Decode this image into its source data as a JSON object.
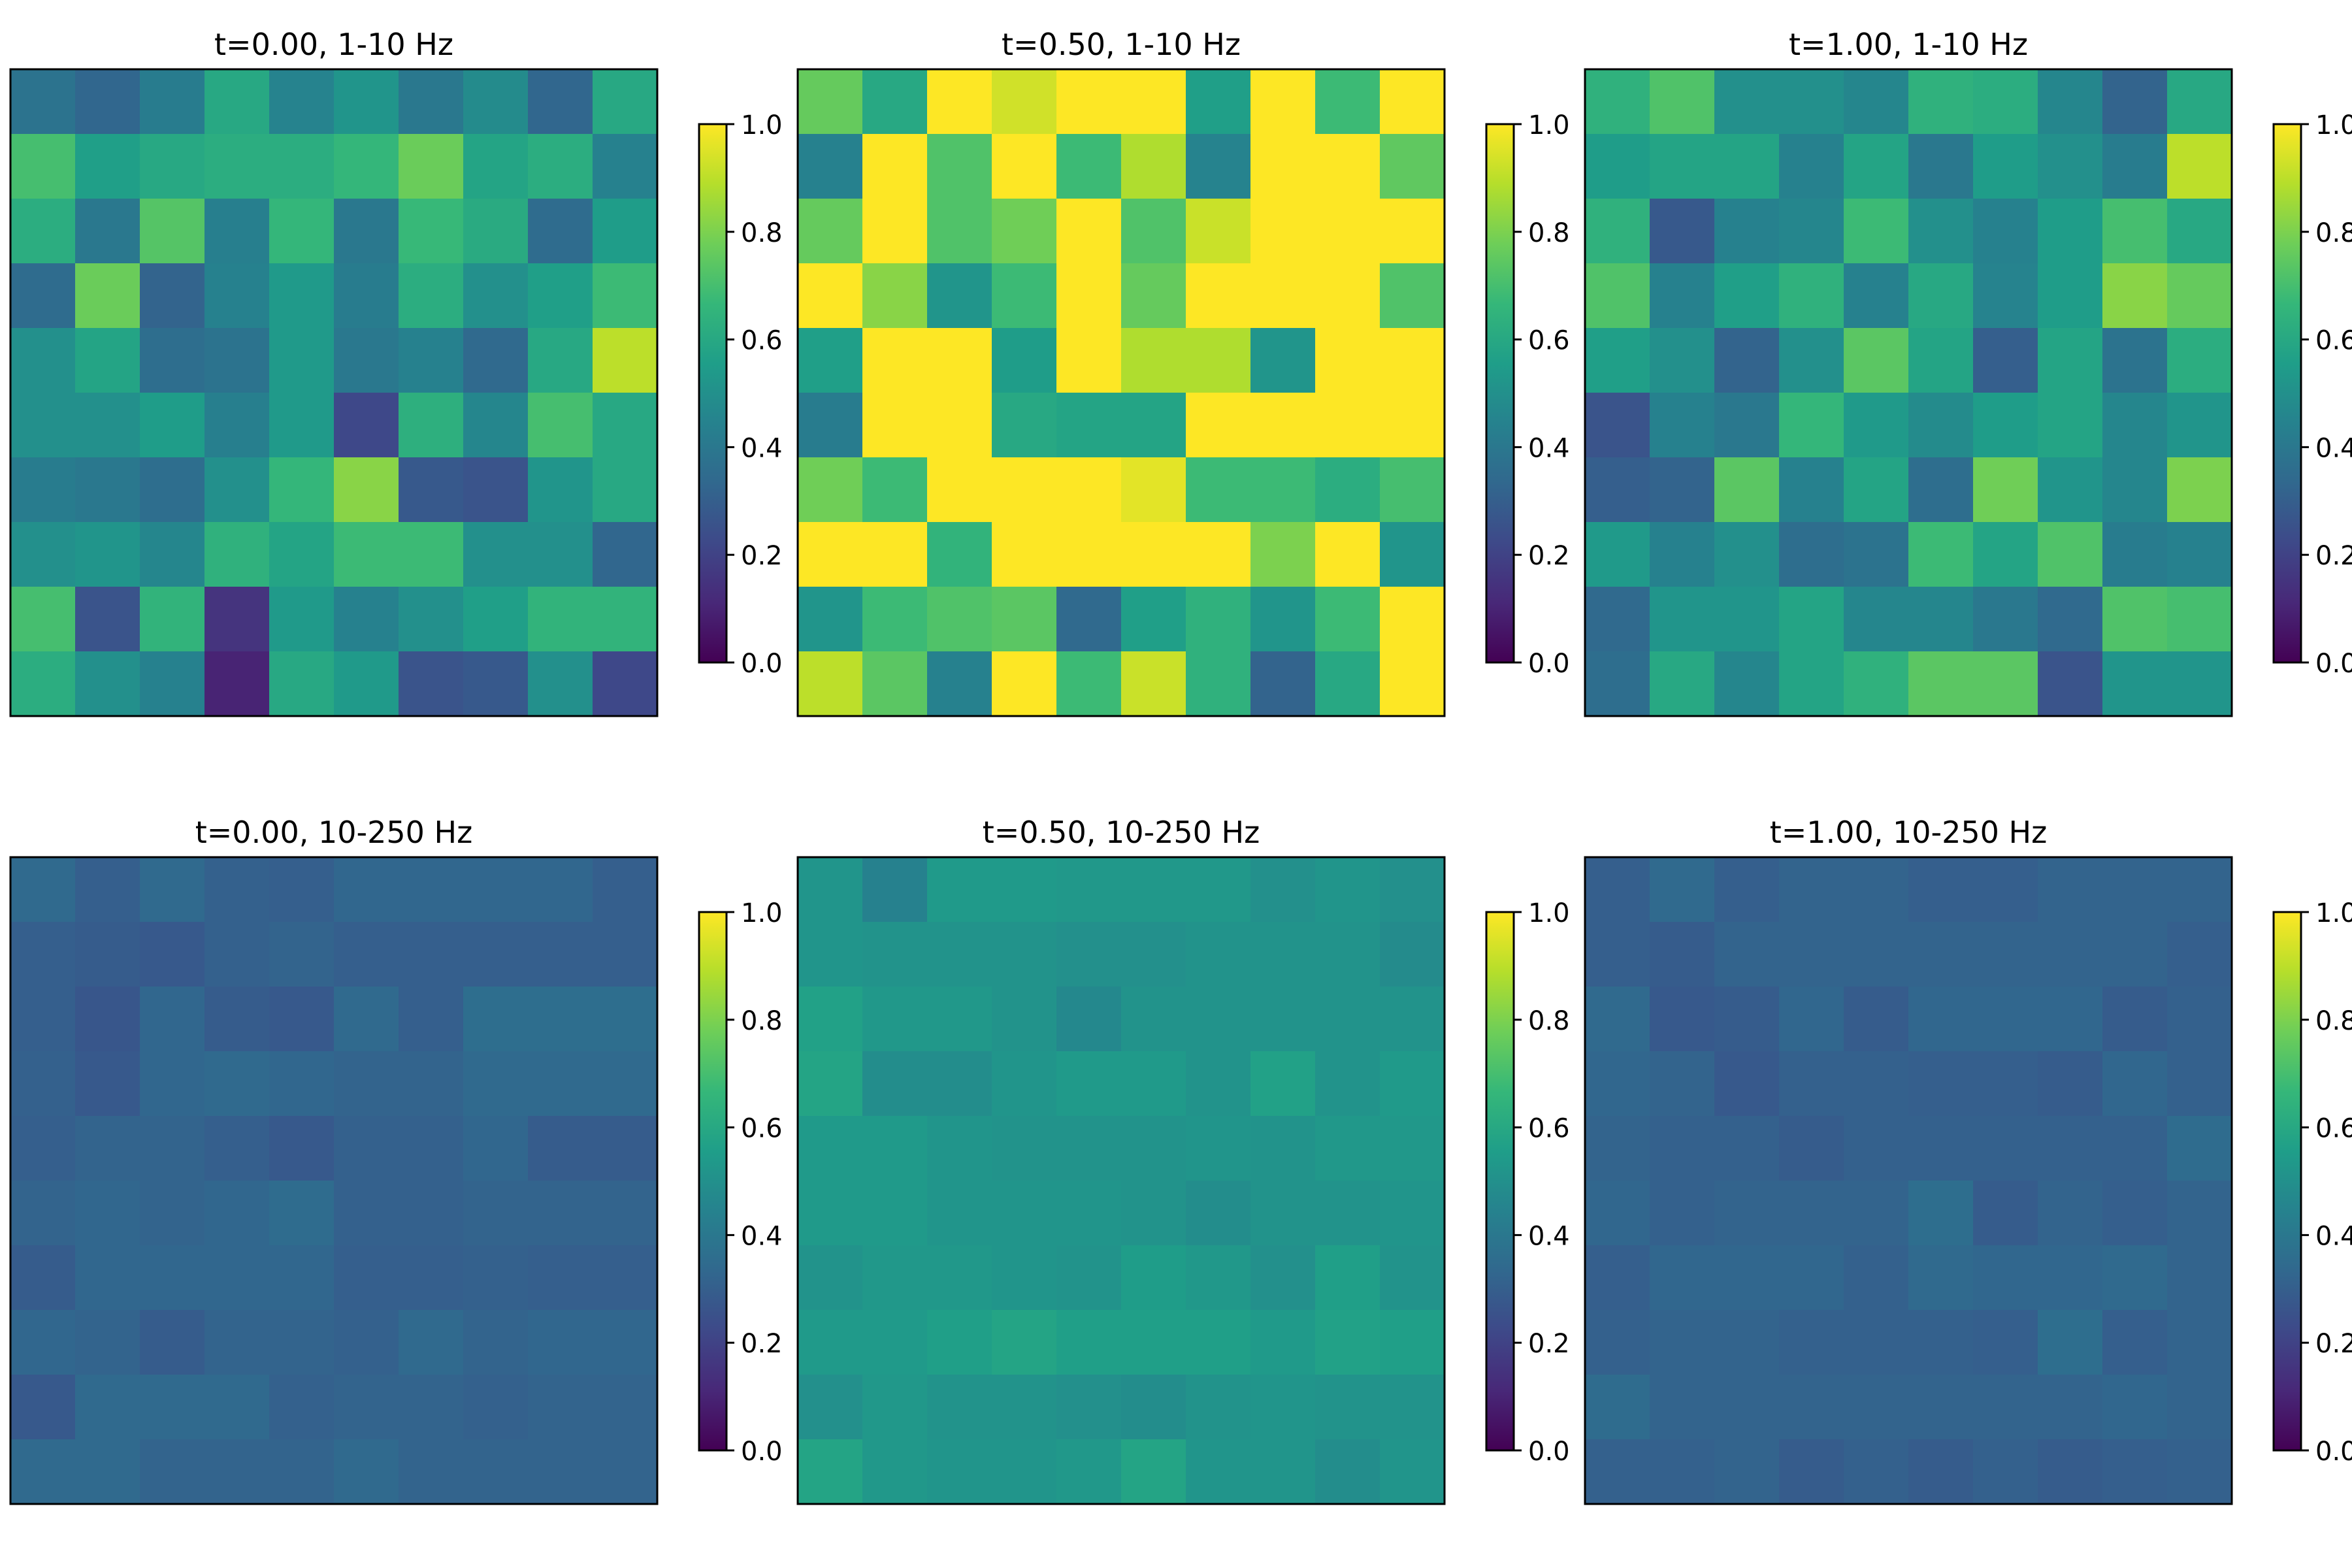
{
  "figure": {
    "colormap": "viridis",
    "colormap_stops": [
      "#440154",
      "#482878",
      "#3e4989",
      "#31688e",
      "#26828e",
      "#1f9e89",
      "#35b779",
      "#6ece58",
      "#b5de2b",
      "#fde725"
    ]
  },
  "chart_data": [
    {
      "type": "heatmap",
      "title": "t=0.00, 1-10 Hz",
      "clim": [
        0,
        1
      ],
      "colorbar_ticks": [
        "0.0",
        "0.2",
        "0.4",
        "0.6",
        "0.8",
        "1.0"
      ],
      "values": [
        [
          0.38,
          0.33,
          0.42,
          0.6,
          0.45,
          0.52,
          0.4,
          0.48,
          0.33,
          0.6
        ],
        [
          0.7,
          0.56,
          0.6,
          0.62,
          0.62,
          0.66,
          0.77,
          0.58,
          0.62,
          0.44
        ],
        [
          0.62,
          0.4,
          0.73,
          0.43,
          0.66,
          0.4,
          0.67,
          0.61,
          0.35,
          0.55
        ],
        [
          0.35,
          0.77,
          0.32,
          0.44,
          0.54,
          0.42,
          0.62,
          0.5,
          0.56,
          0.68
        ],
        [
          0.5,
          0.58,
          0.36,
          0.38,
          0.54,
          0.4,
          0.44,
          0.34,
          0.6,
          0.9
        ],
        [
          0.5,
          0.5,
          0.55,
          0.43,
          0.54,
          0.22,
          0.63,
          0.46,
          0.7,
          0.6
        ],
        [
          0.42,
          0.4,
          0.36,
          0.5,
          0.66,
          0.82,
          0.28,
          0.26,
          0.52,
          0.6
        ],
        [
          0.5,
          0.52,
          0.46,
          0.64,
          0.58,
          0.68,
          0.68,
          0.5,
          0.5,
          0.33
        ],
        [
          0.7,
          0.26,
          0.65,
          0.15,
          0.54,
          0.44,
          0.5,
          0.56,
          0.65,
          0.65
        ],
        [
          0.62,
          0.5,
          0.44,
          0.1,
          0.6,
          0.54,
          0.26,
          0.28,
          0.5,
          0.22
        ]
      ]
    },
    {
      "type": "heatmap",
      "title": "t=0.50, 1-10 Hz",
      "clim": [
        0,
        1
      ],
      "colorbar_ticks": [
        "0.0",
        "0.2",
        "0.4",
        "0.6",
        "0.8",
        "1.0"
      ],
      "values": [
        [
          0.76,
          0.6,
          1.0,
          0.93,
          1.0,
          1.0,
          0.56,
          1.0,
          0.68,
          1.0
        ],
        [
          0.44,
          1.0,
          0.72,
          1.0,
          0.68,
          0.88,
          0.45,
          1.0,
          1.0,
          0.75
        ],
        [
          0.76,
          1.0,
          0.72,
          0.78,
          1.0,
          0.72,
          0.92,
          1.0,
          1.0,
          1.0
        ],
        [
          1.0,
          0.82,
          0.52,
          0.68,
          1.0,
          0.76,
          1.0,
          1.0,
          1.0,
          0.72
        ],
        [
          0.56,
          1.0,
          1.0,
          0.55,
          1.0,
          0.88,
          0.88,
          0.52,
          1.0,
          1.0
        ],
        [
          0.42,
          1.0,
          1.0,
          0.6,
          0.58,
          0.58,
          1.0,
          1.0,
          1.0,
          1.0
        ],
        [
          0.78,
          0.68,
          1.0,
          1.0,
          1.0,
          0.96,
          0.68,
          0.68,
          0.62,
          0.7
        ],
        [
          1.0,
          1.0,
          0.65,
          1.0,
          1.0,
          1.0,
          1.0,
          0.8,
          1.0,
          0.52
        ],
        [
          0.52,
          0.68,
          0.72,
          0.74,
          0.34,
          0.56,
          0.64,
          0.52,
          0.68,
          1.0
        ],
        [
          0.9,
          0.74,
          0.44,
          1.0,
          0.68,
          0.92,
          0.64,
          0.32,
          0.6,
          1.0
        ]
      ]
    },
    {
      "type": "heatmap",
      "title": "t=1.00, 1-10 Hz",
      "clim": [
        0,
        1
      ],
      "colorbar_ticks": [
        "0.0",
        "0.2",
        "0.4",
        "0.6",
        "0.8",
        "1.0"
      ],
      "values": [
        [
          0.64,
          0.72,
          0.5,
          0.5,
          0.46,
          0.64,
          0.62,
          0.46,
          0.32,
          0.6
        ],
        [
          0.55,
          0.58,
          0.58,
          0.44,
          0.58,
          0.4,
          0.55,
          0.5,
          0.42,
          0.9
        ],
        [
          0.64,
          0.28,
          0.44,
          0.46,
          0.68,
          0.5,
          0.44,
          0.55,
          0.7,
          0.6
        ],
        [
          0.72,
          0.44,
          0.56,
          0.64,
          0.44,
          0.6,
          0.45,
          0.55,
          0.82,
          0.76
        ],
        [
          0.56,
          0.5,
          0.32,
          0.5,
          0.74,
          0.58,
          0.3,
          0.58,
          0.38,
          0.62
        ],
        [
          0.26,
          0.44,
          0.4,
          0.66,
          0.54,
          0.48,
          0.55,
          0.58,
          0.46,
          0.52
        ],
        [
          0.3,
          0.32,
          0.74,
          0.44,
          0.58,
          0.36,
          0.78,
          0.52,
          0.46,
          0.8
        ],
        [
          0.54,
          0.44,
          0.5,
          0.36,
          0.38,
          0.68,
          0.58,
          0.72,
          0.42,
          0.44
        ],
        [
          0.34,
          0.52,
          0.52,
          0.58,
          0.46,
          0.46,
          0.4,
          0.34,
          0.72,
          0.7
        ],
        [
          0.36,
          0.6,
          0.46,
          0.58,
          0.64,
          0.74,
          0.74,
          0.26,
          0.52,
          0.52
        ]
      ]
    },
    {
      "type": "heatmap",
      "title": "t=0.00, 10-250 Hz",
      "clim": [
        0,
        1
      ],
      "colorbar_ticks": [
        "0.0",
        "0.2",
        "0.4",
        "0.6",
        "0.8",
        "1.0"
      ],
      "values": [
        [
          0.34,
          0.3,
          0.34,
          0.31,
          0.3,
          0.33,
          0.33,
          0.33,
          0.33,
          0.3
        ],
        [
          0.3,
          0.29,
          0.28,
          0.31,
          0.32,
          0.3,
          0.3,
          0.3,
          0.3,
          0.3
        ],
        [
          0.3,
          0.27,
          0.33,
          0.29,
          0.28,
          0.34,
          0.3,
          0.36,
          0.36,
          0.36
        ],
        [
          0.31,
          0.28,
          0.33,
          0.34,
          0.33,
          0.32,
          0.32,
          0.34,
          0.34,
          0.34
        ],
        [
          0.3,
          0.32,
          0.32,
          0.3,
          0.28,
          0.31,
          0.31,
          0.33,
          0.29,
          0.29
        ],
        [
          0.32,
          0.33,
          0.32,
          0.33,
          0.35,
          0.31,
          0.31,
          0.32,
          0.32,
          0.32
        ],
        [
          0.29,
          0.33,
          0.33,
          0.33,
          0.33,
          0.3,
          0.3,
          0.31,
          0.3,
          0.3
        ],
        [
          0.33,
          0.32,
          0.29,
          0.32,
          0.32,
          0.31,
          0.34,
          0.32,
          0.33,
          0.33
        ],
        [
          0.28,
          0.34,
          0.34,
          0.34,
          0.31,
          0.32,
          0.32,
          0.31,
          0.32,
          0.32
        ],
        [
          0.34,
          0.34,
          0.32,
          0.32,
          0.32,
          0.34,
          0.32,
          0.32,
          0.32,
          0.32
        ]
      ]
    },
    {
      "type": "heatmap",
      "title": "t=0.50, 10-250 Hz",
      "clim": [
        0,
        1
      ],
      "colorbar_ticks": [
        "0.0",
        "0.2",
        "0.4",
        "0.6",
        "0.8",
        "1.0"
      ],
      "values": [
        [
          0.52,
          0.44,
          0.54,
          0.54,
          0.53,
          0.53,
          0.53,
          0.5,
          0.52,
          0.5
        ],
        [
          0.52,
          0.51,
          0.51,
          0.51,
          0.5,
          0.5,
          0.51,
          0.51,
          0.51,
          0.48
        ],
        [
          0.57,
          0.53,
          0.53,
          0.51,
          0.47,
          0.51,
          0.51,
          0.51,
          0.51,
          0.51
        ],
        [
          0.58,
          0.49,
          0.49,
          0.52,
          0.54,
          0.54,
          0.51,
          0.57,
          0.51,
          0.54
        ],
        [
          0.54,
          0.54,
          0.52,
          0.51,
          0.51,
          0.51,
          0.52,
          0.51,
          0.53,
          0.53
        ],
        [
          0.54,
          0.54,
          0.52,
          0.52,
          0.52,
          0.51,
          0.49,
          0.51,
          0.51,
          0.52
        ],
        [
          0.51,
          0.53,
          0.53,
          0.52,
          0.51,
          0.55,
          0.53,
          0.5,
          0.56,
          0.51
        ],
        [
          0.54,
          0.54,
          0.56,
          0.58,
          0.56,
          0.56,
          0.56,
          0.54,
          0.57,
          0.56
        ],
        [
          0.5,
          0.53,
          0.51,
          0.51,
          0.5,
          0.49,
          0.51,
          0.52,
          0.51,
          0.51
        ],
        [
          0.58,
          0.53,
          0.52,
          0.52,
          0.53,
          0.58,
          0.52,
          0.52,
          0.49,
          0.52
        ]
      ]
    },
    {
      "type": "heatmap",
      "title": "t=1.00, 10-250 Hz",
      "clim": [
        0,
        1
      ],
      "colorbar_ticks": [
        "0.0",
        "0.2",
        "0.4",
        "0.6",
        "0.8",
        "1.0"
      ],
      "values": [
        [
          0.3,
          0.34,
          0.3,
          0.32,
          0.32,
          0.3,
          0.3,
          0.32,
          0.32,
          0.32
        ],
        [
          0.3,
          0.29,
          0.32,
          0.32,
          0.32,
          0.32,
          0.32,
          0.32,
          0.32,
          0.3
        ],
        [
          0.34,
          0.28,
          0.29,
          0.33,
          0.29,
          0.33,
          0.33,
          0.33,
          0.29,
          0.31
        ],
        [
          0.33,
          0.32,
          0.28,
          0.31,
          0.31,
          0.3,
          0.3,
          0.29,
          0.33,
          0.31
        ],
        [
          0.32,
          0.31,
          0.31,
          0.29,
          0.31,
          0.31,
          0.31,
          0.31,
          0.31,
          0.35
        ],
        [
          0.33,
          0.31,
          0.32,
          0.32,
          0.32,
          0.36,
          0.29,
          0.32,
          0.3,
          0.32
        ],
        [
          0.3,
          0.33,
          0.33,
          0.33,
          0.31,
          0.34,
          0.33,
          0.33,
          0.34,
          0.32
        ],
        [
          0.31,
          0.32,
          0.32,
          0.31,
          0.31,
          0.31,
          0.3,
          0.36,
          0.3,
          0.32
        ],
        [
          0.35,
          0.32,
          0.32,
          0.32,
          0.32,
          0.32,
          0.32,
          0.32,
          0.33,
          0.32
        ],
        [
          0.31,
          0.31,
          0.32,
          0.29,
          0.31,
          0.29,
          0.31,
          0.29,
          0.3,
          0.31
        ]
      ]
    }
  ]
}
